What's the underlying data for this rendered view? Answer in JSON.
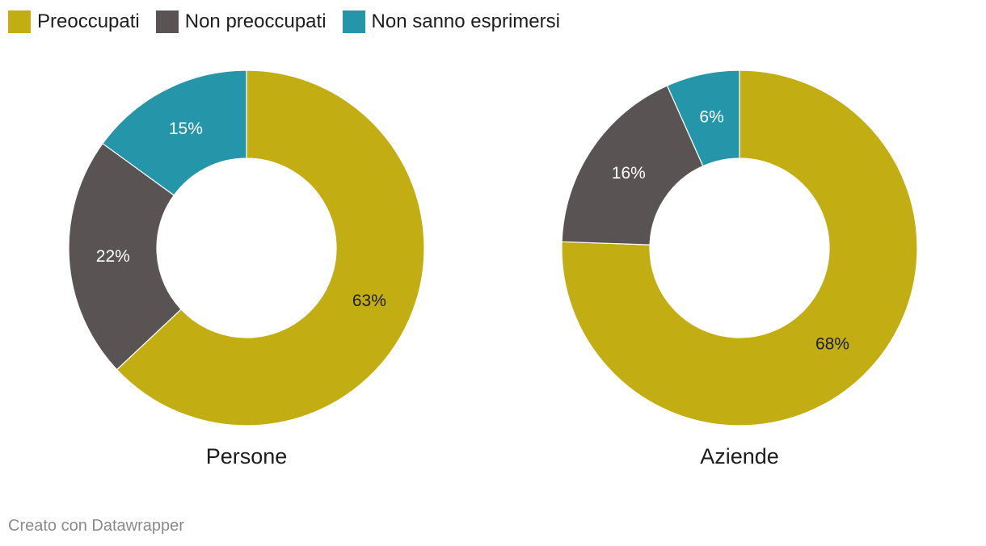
{
  "legend": {
    "items": [
      {
        "label": "Preoccupati",
        "color": "#c2ad13"
      },
      {
        "label": "Non preoccupati",
        "color": "#595453"
      },
      {
        "label": "Non sanno esprimersi",
        "color": "#2596aa"
      }
    ]
  },
  "chart_data": [
    {
      "type": "pie",
      "variant": "donut",
      "title": "Persone",
      "categories": [
        "Preoccupati",
        "Non preoccupati",
        "Non sanno esprimersi"
      ],
      "values": [
        63,
        22,
        15
      ],
      "labels": [
        "63%",
        "22%",
        "15%"
      ],
      "colors": [
        "#c2ad13",
        "#595453",
        "#2596aa"
      ],
      "label_colors": [
        "#1d1d1d",
        "#ffffff",
        "#ffffff"
      ]
    },
    {
      "type": "pie",
      "variant": "donut",
      "title": "Aziende",
      "categories": [
        "Preoccupati",
        "Non preoccupati",
        "Non sanno esprimersi"
      ],
      "values": [
        68,
        16,
        6
      ],
      "labels": [
        "68%",
        "16%",
        "6%"
      ],
      "colors": [
        "#c2ad13",
        "#595453",
        "#2596aa"
      ],
      "label_colors": [
        "#1d1d1d",
        "#ffffff",
        "#ffffff"
      ]
    }
  ],
  "footer": {
    "credit": "Creato con Datawrapper"
  }
}
